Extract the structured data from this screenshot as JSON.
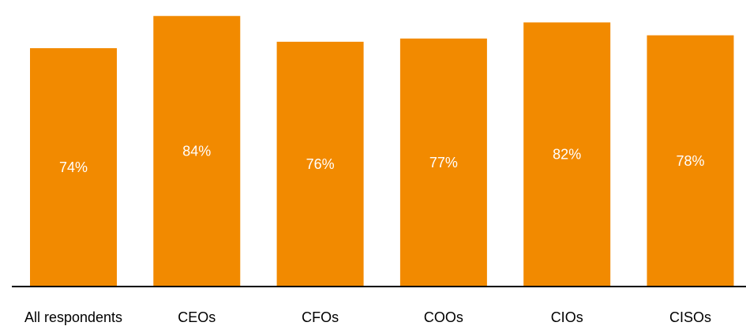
{
  "chart_data": {
    "type": "bar",
    "title": "",
    "xlabel": "",
    "ylabel": "",
    "categories": [
      "All respondents",
      "CEOs",
      "CFOs",
      "COOs",
      "CIOs",
      "CISOs"
    ],
    "values": [
      74,
      84,
      76,
      77,
      82,
      78
    ],
    "value_labels": [
      "74%",
      "84%",
      "76%",
      "77%",
      "82%",
      "78%"
    ],
    "ylim": [
      0,
      87
    ],
    "grid": false,
    "legend": "none",
    "bar_color": "#F28A00",
    "bar_label_color": "#FFFFFF",
    "axis_color": "#000000"
  }
}
